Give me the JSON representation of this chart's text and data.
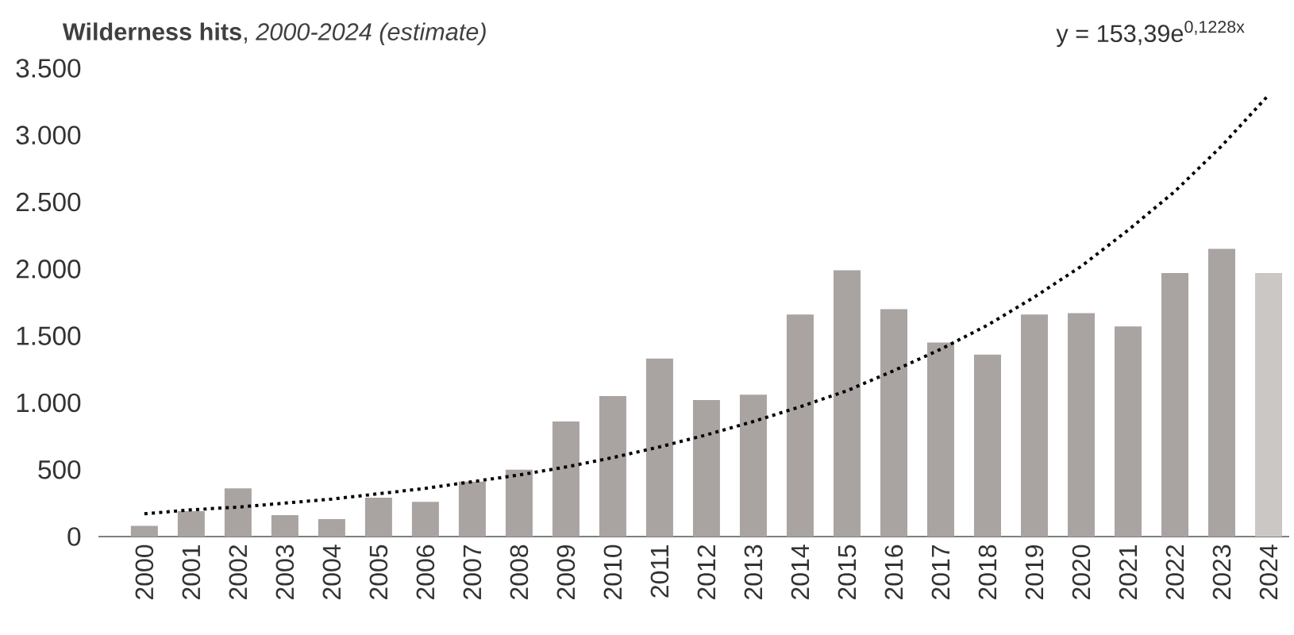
{
  "chart_data": {
    "type": "bar",
    "title": "**Wilderness hits**, *2000-2024 (estimate)*",
    "categories": [
      "2000",
      "2001",
      "2002",
      "2003",
      "2004",
      "2005",
      "2006",
      "2007",
      "2008",
      "2009",
      "2010",
      "2011",
      "2012",
      "2013",
      "2014",
      "2015",
      "2016",
      "2017",
      "2018",
      "2019",
      "2020",
      "2021",
      "2022",
      "2023",
      "2024"
    ],
    "series": [
      {
        "colors": [
          "#a9a3a1",
          "#a9a3a1",
          "#a9a3a1",
          "#a9a3a1",
          "#a9a3a1",
          "#a9a3a1",
          "#a9a3a1",
          "#a9a3a1",
          "#a9a3a1",
          "#a9a3a1",
          "#a9a3a1",
          "#a9a3a1",
          "#a9a3a1",
          "#a9a3a1",
          "#a9a3a1",
          "#a9a3a1",
          "#a9a3a1",
          "#a9a3a1",
          "#a9a3a1",
          "#a9a3a1",
          "#a9a3a1",
          "#a9a3a1",
          "#a9a3a1",
          "#a9a3a1",
          "#cbc7c5"
        ],
        "values": [
          80,
          190,
          360,
          160,
          130,
          290,
          260,
          410,
          500,
          860,
          1050,
          1330,
          1020,
          1060,
          1660,
          1990,
          1700,
          1450,
          1360,
          1660,
          1670,
          1570,
          1970,
          2150,
          1970
        ]
      },
      {
        "type": "line",
        "color": "#000000",
        "line_style": "dotted",
        "values": [
          170,
          200,
          220,
          250,
          280,
          320,
          360,
          410,
          460,
          520,
          590,
          670,
          760,
          860,
          970,
          1090,
          1240,
          1400,
          1580,
          1790,
          2020,
          2290,
          2580,
          2920,
          3300
        ]
      }
    ],
    "annotations": [
      "y = 153,39e$^{0,1228x}$"
    ],
    "ylim": [
      0,
      3500
    ],
    "yticks": [
      0,
      500,
      {
        "value": 1000,
        "label": "1.000"
      },
      {
        "value": 1500,
        "label": "1.500"
      },
      {
        "value": 2000,
        "label": "2.000"
      },
      {
        "value": 2500,
        "label": "2.500"
      },
      {
        "value": 3000,
        "label": "3.000"
      },
      {
        "value": 3500,
        "label": "3.500"
      }
    ],
    "grid": false
  }
}
